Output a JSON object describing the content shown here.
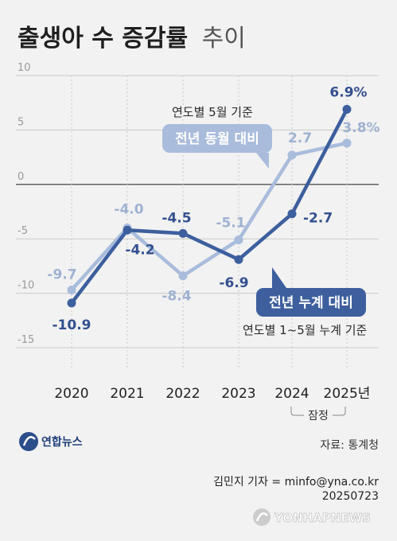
{
  "title": {
    "main": "출생아 수 증감률",
    "suffix": "추이"
  },
  "chart_data": {
    "type": "line",
    "categories": [
      "2020",
      "2021",
      "2022",
      "2023",
      "2024",
      "2025년"
    ],
    "ylim": [
      -15,
      10
    ],
    "yticks": [
      10,
      5,
      0,
      -5,
      -10,
      -15
    ],
    "grid": true,
    "series": [
      {
        "name": "전년 동월 대비",
        "note": "연도별 5월 기준",
        "values": [
          -9.7,
          -4.0,
          -8.4,
          -5.1,
          2.7,
          3.8
        ],
        "labels": [
          "-9.7",
          "-4.0",
          "-8.4",
          "-5.1",
          "2.7",
          "3.8%"
        ],
        "color": "#a9bcdc"
      },
      {
        "name": "전년 누계 대비",
        "note": "연도별 1~5월 누계 기준",
        "values": [
          -10.9,
          -4.2,
          -4.5,
          -6.9,
          -2.7,
          6.9
        ],
        "labels": [
          "-10.9",
          "-4.2",
          "-4.5",
          "-6.9",
          "-2.7",
          "6.9%"
        ],
        "color": "#3d5f9e"
      }
    ],
    "annotation": "잠정"
  },
  "source": "자료: 통계청",
  "credit": {
    "reporter": "김민지 기자 = minfo@yna.co.kr",
    "date": "20250723"
  },
  "logo": {
    "text": "연합뉴스"
  },
  "watermark": "YONHAPNEWS"
}
